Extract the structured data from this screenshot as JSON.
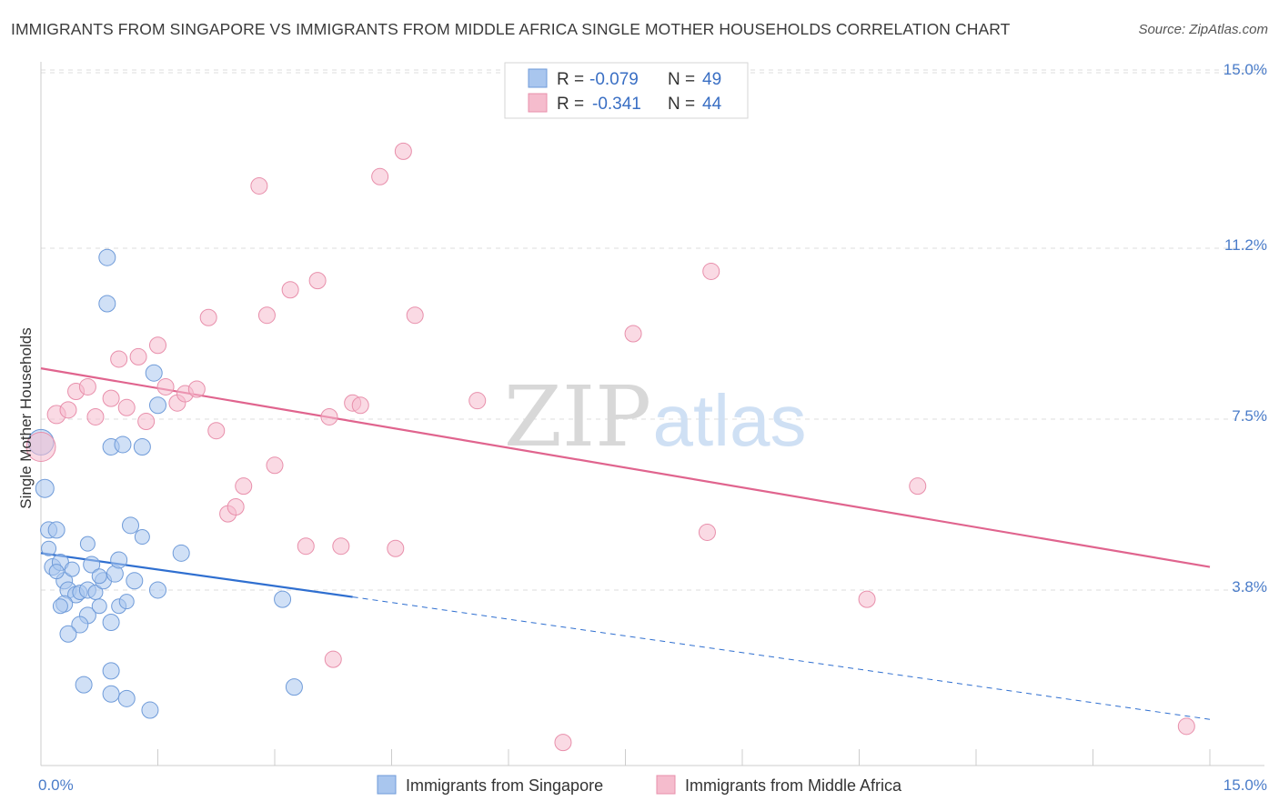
{
  "title": "IMMIGRANTS FROM SINGAPORE VS IMMIGRANTS FROM MIDDLE AFRICA SINGLE MOTHER HOUSEHOLDS CORRELATION CHART",
  "source": "Source: ZipAtlas.com",
  "watermark": {
    "zip": "ZIP",
    "atlas": "atlas"
  },
  "colors": {
    "blue_fill": "#a9c6ee",
    "blue_stroke": "#6f9bd9",
    "blue_line": "#2f6fd0",
    "pink_fill": "#f5bccd",
    "pink_stroke": "#e88fab",
    "pink_line": "#e0648e",
    "tick_label": "#4a7cc9",
    "grid": "#dddddd"
  },
  "legend": {
    "r_label": "R =",
    "n_label": "N =",
    "rows": [
      {
        "r": "-0.079",
        "n": "49",
        "color": "blue"
      },
      {
        "r": "-0.341",
        "n": "44",
        "color": "pink"
      }
    ]
  },
  "chart_data": {
    "type": "scatter",
    "xlabel": "",
    "ylabel": "Single Mother Households",
    "xlim": [
      0,
      15
    ],
    "ylim": [
      0,
      15.0
    ],
    "x_tick_labels": [
      {
        "value": 0,
        "label": "0.0%"
      },
      {
        "value": 15,
        "label": "15.0%"
      }
    ],
    "y_ticks": [
      {
        "value": 3.8,
        "label": "3.8%"
      },
      {
        "value": 7.5,
        "label": "7.5%"
      },
      {
        "value": 11.2,
        "label": "11.2%"
      },
      {
        "value": 15.0,
        "label": "15.0%"
      }
    ],
    "grid": true,
    "legend_position": "top-center",
    "series": [
      {
        "name": "Immigrants from Singapore",
        "color": "blue",
        "trend": {
          "x0": 0.0,
          "y0": 4.6,
          "x1": 4.0,
          "y1": 3.65,
          "dashed_to_x": 15.0,
          "dashed_to_y": 1.0
        },
        "points": [
          [
            0.0,
            7.0,
            14
          ],
          [
            0.05,
            6.0,
            10
          ],
          [
            0.1,
            5.1,
            9
          ],
          [
            0.2,
            5.1,
            9
          ],
          [
            0.1,
            4.7,
            8
          ],
          [
            0.15,
            4.3,
            9
          ],
          [
            0.25,
            4.4,
            9
          ],
          [
            0.3,
            4.0,
            9
          ],
          [
            0.35,
            3.8,
            9
          ],
          [
            0.45,
            3.7,
            9
          ],
          [
            0.5,
            3.75,
            8
          ],
          [
            0.6,
            3.8,
            9
          ],
          [
            0.7,
            3.75,
            8
          ],
          [
            0.8,
            4.0,
            9
          ],
          [
            0.95,
            4.15,
            9
          ],
          [
            0.65,
            4.35,
            9
          ],
          [
            1.0,
            4.45,
            9
          ],
          [
            0.3,
            3.5,
            9
          ],
          [
            0.25,
            3.45,
            8
          ],
          [
            0.6,
            3.25,
            9
          ],
          [
            0.75,
            3.45,
            8
          ],
          [
            0.9,
            3.1,
            9
          ],
          [
            0.5,
            3.05,
            9
          ],
          [
            0.35,
            2.85,
            9
          ],
          [
            0.9,
            2.05,
            9
          ],
          [
            0.55,
            1.75,
            9
          ],
          [
            0.9,
            1.55,
            9
          ],
          [
            1.1,
            1.45,
            9
          ],
          [
            1.4,
            1.2,
            9
          ],
          [
            3.25,
            1.7,
            9
          ],
          [
            0.85,
            11.0,
            9
          ],
          [
            0.85,
            10.0,
            9
          ],
          [
            0.9,
            6.9,
            9
          ],
          [
            1.05,
            6.95,
            9
          ],
          [
            1.3,
            6.9,
            9
          ],
          [
            1.45,
            8.5,
            9
          ],
          [
            1.5,
            7.8,
            9
          ],
          [
            1.15,
            5.2,
            9
          ],
          [
            1.2,
            4.0,
            9
          ],
          [
            1.5,
            3.8,
            9
          ],
          [
            1.8,
            4.6,
            9
          ],
          [
            3.1,
            3.6,
            9
          ],
          [
            0.6,
            4.8,
            8
          ],
          [
            1.0,
            3.45,
            8
          ],
          [
            0.4,
            4.25,
            8
          ],
          [
            1.3,
            4.95,
            8
          ],
          [
            0.2,
            4.2,
            8
          ],
          [
            1.1,
            3.55,
            8
          ],
          [
            0.75,
            4.1,
            8
          ]
        ]
      },
      {
        "name": "Immigrants from Middle Africa",
        "color": "pink",
        "trend": {
          "x0": 0.0,
          "y0": 8.6,
          "x1": 15.0,
          "y1": 4.3
        },
        "points": [
          [
            0.0,
            6.9,
            16
          ],
          [
            0.2,
            7.6,
            10
          ],
          [
            0.35,
            7.7,
            9
          ],
          [
            0.45,
            8.1,
            9
          ],
          [
            0.6,
            8.2,
            9
          ],
          [
            0.7,
            7.55,
            9
          ],
          [
            0.9,
            7.95,
            9
          ],
          [
            1.0,
            8.8,
            9
          ],
          [
            1.1,
            7.75,
            9
          ],
          [
            1.25,
            8.85,
            9
          ],
          [
            1.35,
            7.45,
            9
          ],
          [
            1.5,
            9.1,
            9
          ],
          [
            1.6,
            8.2,
            9
          ],
          [
            1.75,
            7.85,
            9
          ],
          [
            1.85,
            8.05,
            9
          ],
          [
            2.0,
            8.15,
            9
          ],
          [
            2.15,
            9.7,
            9
          ],
          [
            2.25,
            7.25,
            9
          ],
          [
            2.4,
            5.45,
            9
          ],
          [
            2.5,
            5.6,
            9
          ],
          [
            2.6,
            6.05,
            9
          ],
          [
            2.8,
            12.55,
            9
          ],
          [
            2.9,
            9.75,
            9
          ],
          [
            3.0,
            6.5,
            9
          ],
          [
            3.2,
            10.3,
            9
          ],
          [
            3.4,
            4.75,
            9
          ],
          [
            3.55,
            10.5,
            9
          ],
          [
            3.7,
            7.55,
            9
          ],
          [
            3.85,
            4.75,
            9
          ],
          [
            3.75,
            2.3,
            9
          ],
          [
            4.0,
            7.85,
            9
          ],
          [
            4.1,
            7.8,
            9
          ],
          [
            4.35,
            12.75,
            9
          ],
          [
            4.55,
            4.7,
            9
          ],
          [
            4.65,
            13.3,
            9
          ],
          [
            4.8,
            9.75,
            9
          ],
          [
            5.6,
            7.9,
            9
          ],
          [
            7.6,
            9.35,
            9
          ],
          [
            8.6,
            10.7,
            9
          ],
          [
            8.55,
            5.05,
            9
          ],
          [
            10.6,
            3.6,
            9
          ],
          [
            11.25,
            6.05,
            9
          ],
          [
            6.7,
            0.5,
            9
          ],
          [
            14.7,
            0.85,
            9
          ]
        ]
      }
    ]
  }
}
